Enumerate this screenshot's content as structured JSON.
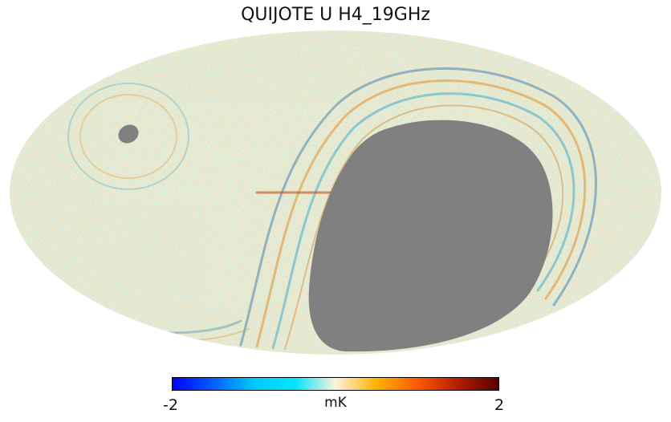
{
  "title": "QUIJOTE U H4_19GHz",
  "colorbar": {
    "min_label": "-2",
    "max_label": "2",
    "unit": "mK",
    "colors": [
      "#0000ff",
      "#0060ff",
      "#00c8ff",
      "#00e6ff",
      "#fff2dc",
      "#ffb300",
      "#ff5a00",
      "#b41e00",
      "#5a0000"
    ]
  },
  "map": {
    "projection": "mollweide",
    "mask_color": "#808080",
    "background_color": "#f7ecd8"
  }
}
